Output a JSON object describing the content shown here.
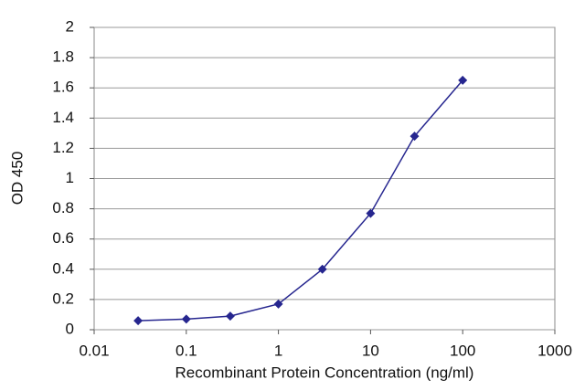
{
  "chart_data": {
    "type": "line",
    "y_label": "OD 450",
    "x_label": "Recombinant Protein Concentration (ng/ml)",
    "x": [
      0.03,
      0.1,
      0.3,
      1,
      3,
      10,
      30,
      100
    ],
    "values": [
      0.06,
      0.07,
      0.09,
      0.17,
      0.4,
      0.77,
      1.28,
      1.65
    ],
    "color": "#26268f",
    "x_log": true,
    "xlim": [
      0.01,
      1000
    ],
    "xticks": [
      0.01,
      0.1,
      1,
      10,
      100,
      1000
    ],
    "ylim": [
      0,
      2
    ],
    "yticks": [
      0,
      0.2,
      0.4,
      0.6,
      0.8,
      1,
      1.2,
      1.4,
      1.6,
      1.8,
      2
    ],
    "grid": true
  }
}
